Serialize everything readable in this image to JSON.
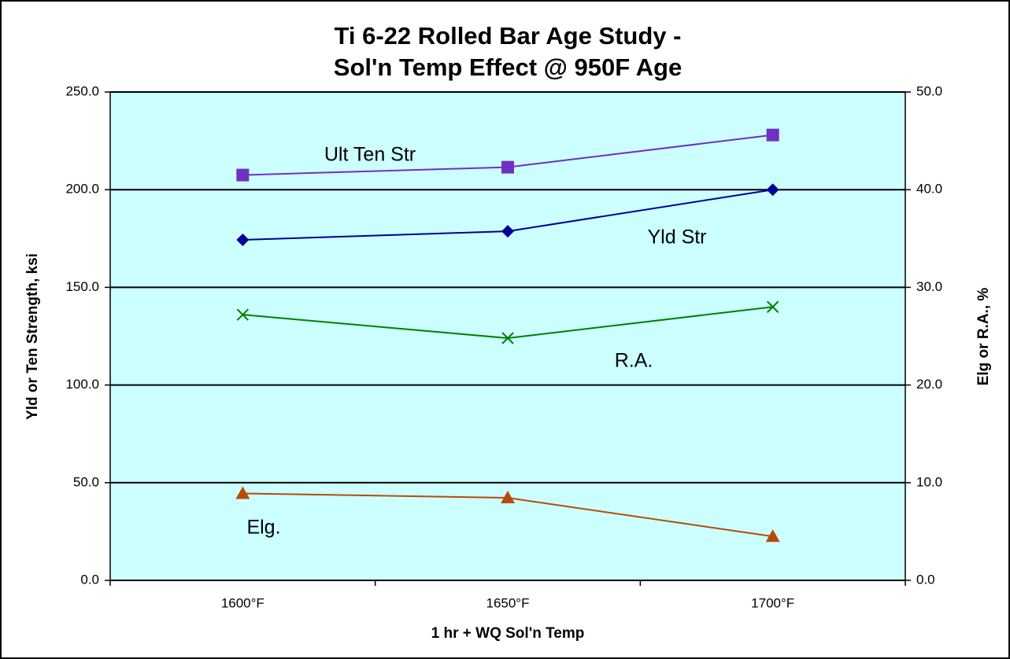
{
  "chart_data": {
    "type": "line",
    "title": [
      "Ti 6-22 Rolled Bar Age Study -",
      "Sol'n Temp Effect @ 950F Age"
    ],
    "x_label": "1 hr + WQ Sol'n Temp",
    "y_label": "Yld or Ten Strength, ksi",
    "y2_label": "Elg or R.A., %",
    "categories": [
      "1600°F",
      "1650°F",
      "1700°F"
    ],
    "ylim": [
      0,
      250
    ],
    "yticks": [
      {
        "value": 0,
        "label": "0.0"
      },
      {
        "value": 50,
        "label": "50.0"
      },
      {
        "value": 100,
        "label": "100.0"
      },
      {
        "value": 150,
        "label": "150.0"
      },
      {
        "value": 200,
        "label": "200.0"
      },
      {
        "value": 250,
        "label": "250.0"
      }
    ],
    "y2lim": [
      0,
      50
    ],
    "y2ticks": [
      {
        "value": 0,
        "label": "0.0"
      },
      {
        "value": 10,
        "label": "10.0"
      },
      {
        "value": 20,
        "label": "20.0"
      },
      {
        "value": 30,
        "label": "30.0"
      },
      {
        "value": 40,
        "label": "40.0"
      },
      {
        "value": 50,
        "label": "50.0"
      }
    ],
    "grid": true,
    "plot_background": "#ccffff",
    "series": [
      {
        "name": "Ult Ten Str",
        "color": "#7030c0",
        "marker": "square",
        "values": [
          207.5,
          211.5,
          228
        ]
      },
      {
        "name": "Yld Str",
        "color": "#000099",
        "marker": "diamond",
        "values": [
          174.3,
          178.7,
          200
        ]
      },
      {
        "name": "R.A.",
        "color": "#008000",
        "marker": "x",
        "axis": "y2",
        "values": [
          27.2,
          24.8,
          28.0
        ]
      },
      {
        "name": "Elg.",
        "color": "#b84a0a",
        "marker": "triangle",
        "axis": "y2",
        "values": [
          8.9,
          8.45,
          4.5
        ]
      }
    ]
  }
}
